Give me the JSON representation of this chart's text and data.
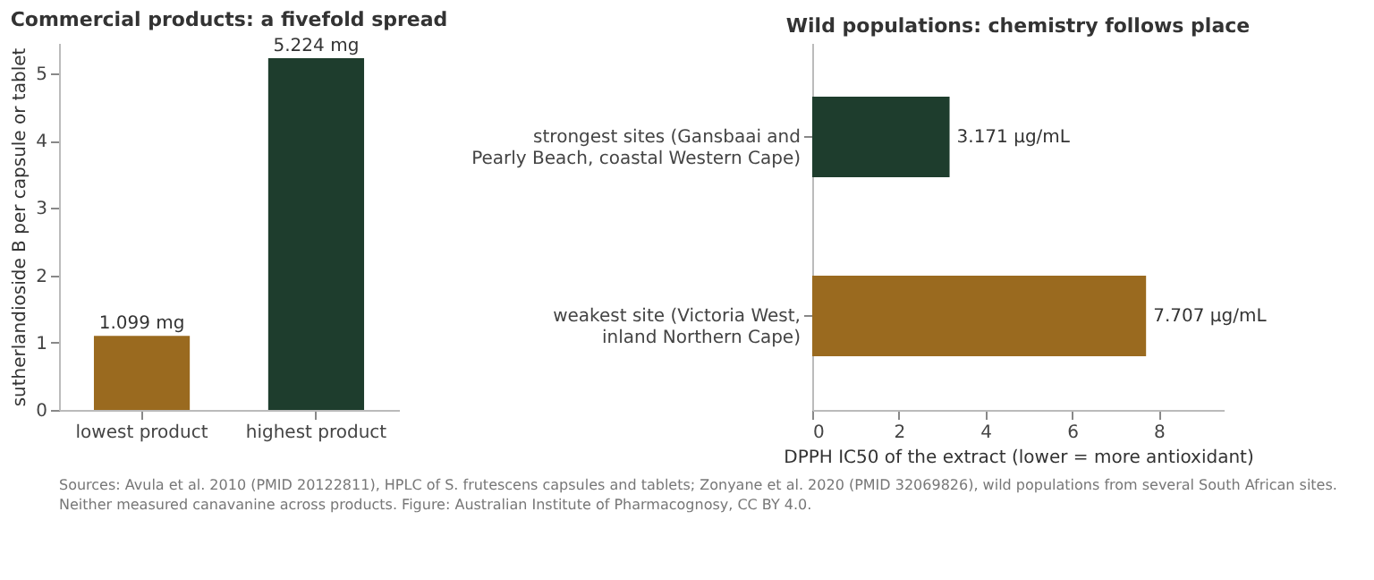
{
  "chart_data": [
    {
      "type": "bar",
      "title": "Commercial products: a fivefold spread",
      "ylabel": "sutherlandioside B per capsule or tablet",
      "categories": [
        "lowest product",
        "highest product"
      ],
      "values": [
        1.099,
        5.224
      ],
      "colors": [
        "#9a6a1f",
        "#1e3d2d"
      ],
      "value_labels": [
        "1.099 mg",
        "5.224 mg"
      ],
      "ylim": [
        0,
        5.45
      ],
      "yticks": [
        0,
        1,
        2,
        3,
        4,
        5
      ],
      "grid": false,
      "legend": false
    },
    {
      "type": "bar",
      "orientation": "horizontal",
      "title": "Wild populations: chemistry follows place",
      "xlabel": "DPPH IC50 of the extract (lower = more antioxidant)",
      "categories": [
        "strongest sites (Gansbaai and\nPearly Beach, coastal Western Cape)",
        "weakest site (Victoria West,\ninland Northern Cape)"
      ],
      "values": [
        3.171,
        7.707
      ],
      "colors": [
        "#1e3d2d",
        "#9a6a1f"
      ],
      "value_labels": [
        "3.171 µg/mL",
        "7.707 µg/mL"
      ],
      "xlim": [
        0,
        9.5
      ],
      "xticks": [
        0,
        2,
        4,
        6,
        8
      ],
      "grid": false,
      "legend": false,
      "annotations": [
        "Sources: Avula et al. 2010 (PMID 20122811), HPLC of S. frutescens capsules and tablets; Zonyane et al. 2020 (PMID 32069826), wild populations from several South African sites.",
        "Neither measured canavanine across products. Figure: Australian Institute of Pharmacognosy, CC BY 4.0."
      ]
    }
  ]
}
